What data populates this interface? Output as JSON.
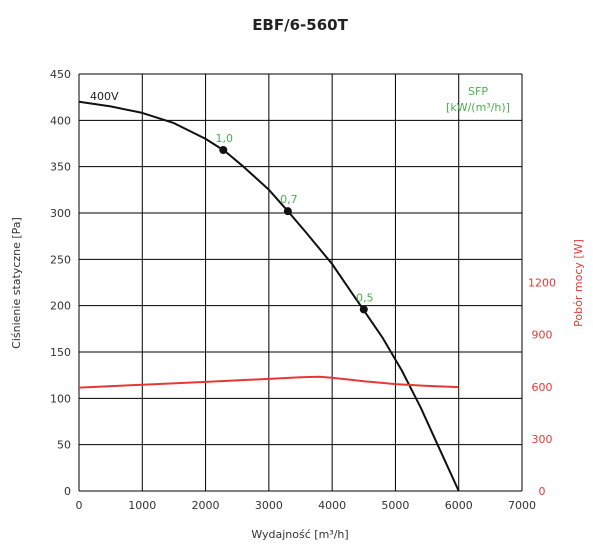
{
  "chart_data": {
    "type": "line",
    "title": "EBF/6-560T",
    "xlabel": "Wydajność [m³/h]",
    "ylabel": "Ciśnienie statyczne [Pa]",
    "y2label": "Pobór mocy [W]",
    "xlim": [
      0,
      7000
    ],
    "ylim": [
      0,
      450
    ],
    "y2lim": [
      0,
      2400
    ],
    "x_ticks": [
      0,
      1000,
      2000,
      3000,
      4000,
      5000,
      6000,
      7000
    ],
    "y_ticks": [
      0,
      50,
      100,
      150,
      200,
      250,
      300,
      350,
      400,
      450
    ],
    "y2_ticks": [
      0,
      300,
      600,
      900,
      1200
    ],
    "grid": true,
    "series": [
      {
        "name": "400V",
        "axis": "left",
        "color": "#111111",
        "x": [
          0,
          500,
          1000,
          1500,
          2000,
          2300,
          2600,
          3000,
          3300,
          3600,
          4000,
          4300,
          4500,
          4800,
          5100,
          5400,
          5700,
          5900,
          6000
        ],
        "y": [
          420,
          415,
          408,
          397,
          380,
          367,
          350,
          325,
          302,
          278,
          245,
          215,
          195,
          165,
          130,
          90,
          45,
          15,
          0
        ]
      },
      {
        "name": "Pobór mocy",
        "axis": "right",
        "color": "#e53935",
        "x": [
          0,
          1000,
          2000,
          3000,
          3500,
          3800,
          4000,
          4500,
          5000,
          5500,
          6000
        ],
        "y": [
          595,
          612,
          628,
          645,
          655,
          658,
          652,
          632,
          615,
          605,
          598
        ]
      }
    ],
    "points": [
      {
        "x": 2280,
        "y": 368,
        "label": "1,0"
      },
      {
        "x": 3300,
        "y": 302,
        "label": "0,7"
      },
      {
        "x": 4500,
        "y": 196,
        "label": "0,5"
      }
    ],
    "annotations": {
      "curve_label": "400V",
      "sfp_label": "SFP",
      "sfp_unit": "[kW/(m³/h)]"
    }
  },
  "colors": {
    "curve": "#111111",
    "power": "#e53935",
    "sfp": "#4caf50",
    "grid": "#000000"
  }
}
